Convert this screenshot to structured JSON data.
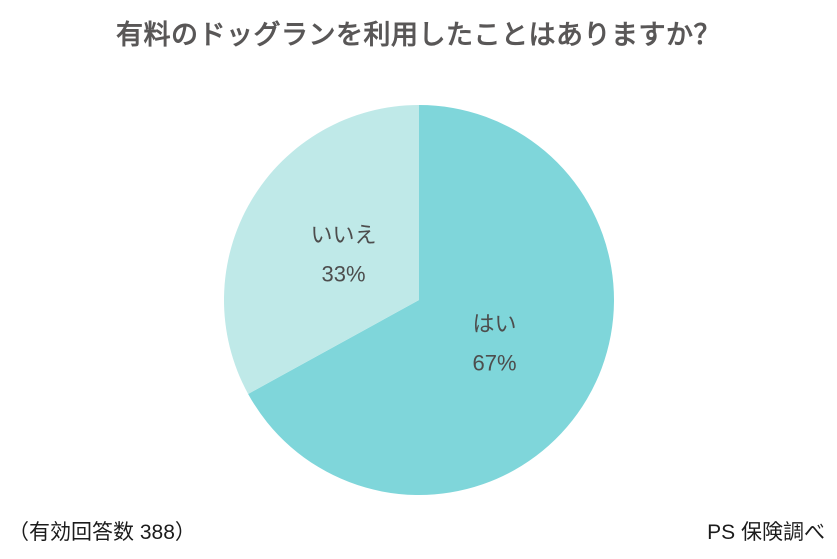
{
  "chart_data": {
    "type": "pie",
    "title": "有料のドッグランを利用したことはありますか？",
    "slices": [
      {
        "label": "はい",
        "value": 67,
        "percent_label": "67%",
        "color": "#7fd6da"
      },
      {
        "label": "いいえ",
        "value": 33,
        "percent_label": "33%",
        "color": "#bfe9e8"
      }
    ],
    "start_angle_deg": 0,
    "direction": "clockwise",
    "labels_inside": true,
    "label_color": "#4d4d4d",
    "legend_position": "none",
    "background": "#ffffff"
  },
  "footer": {
    "left": "（有効回答数 388）",
    "right": "PS 保険調べ"
  }
}
